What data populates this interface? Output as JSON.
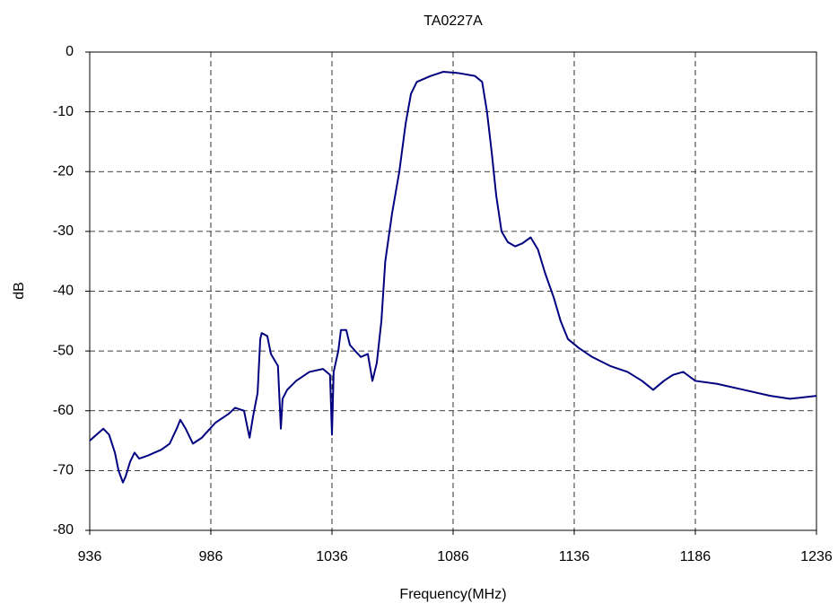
{
  "chart_data": {
    "type": "line",
    "title": "TA0227A",
    "x_label": "Frequency(MHz)",
    "y_label": "dB",
    "x": [
      936,
      941.6,
      944,
      946.4,
      947.9,
      949.7,
      950.8,
      952.7,
      954.5,
      956.4,
      960,
      965.6,
      969,
      971.9,
      973.4,
      975.6,
      978.6,
      982.3,
      987.9,
      993.4,
      996,
      999.7,
      1001.2,
      1002,
      1003.4,
      1005.3,
      1006.4,
      1007,
      1009.3,
      1010.8,
      1013.7,
      1014.9,
      1015.6,
      1017.5,
      1021.2,
      1026.7,
      1032.3,
      1035.2,
      1036,
      1036.7,
      1038.6,
      1039.7,
      1041.9,
      1043.4,
      1045.6,
      1047.9,
      1050.8,
      1052.7,
      1054.5,
      1056.4,
      1058,
      1060.8,
      1063.8,
      1066.4,
      1068.6,
      1071,
      1076.7,
      1082,
      1087.9,
      1095,
      1098,
      1100,
      1102,
      1103.8,
      1106,
      1108.6,
      1111.6,
      1114.6,
      1118,
      1121,
      1124,
      1127.5,
      1130.4,
      1133.4,
      1137.9,
      1143.4,
      1150.8,
      1158,
      1164,
      1168.6,
      1173,
      1176.7,
      1181,
      1186,
      1195,
      1206,
      1217,
      1225,
      1236
    ],
    "series": [
      {
        "name": "TA0227A",
        "color": "#000080",
        "values": [
          -65,
          -63,
          -64,
          -67,
          -70,
          -72,
          -71,
          -68.5,
          -67,
          -68,
          -67.5,
          -66.5,
          -65.5,
          -63,
          -61.5,
          -63,
          -65.5,
          -64.5,
          -62,
          -60.5,
          -59.5,
          -60,
          -63,
          -64.5,
          -61,
          -57,
          -48,
          -47,
          -47.5,
          -50.5,
          -52.5,
          -63,
          -58,
          -56.5,
          -55,
          -53.5,
          -53,
          -54,
          -64,
          -53.5,
          -50,
          -46.5,
          -46.5,
          -49,
          -50,
          -51,
          -50.5,
          -55,
          -52,
          -45,
          -35,
          -27,
          -20,
          -12,
          -7,
          -5,
          -4,
          -3.3,
          -3.5,
          -4,
          -5,
          -10,
          -17,
          -24,
          -30,
          -31.8,
          -32.5,
          -32,
          -31,
          -33,
          -37,
          -41,
          -45,
          -48,
          -49.5,
          -51,
          -52.5,
          -53.5,
          -55,
          -56.5,
          -55,
          -54,
          -53.5,
          -55,
          -55.5,
          -56.5,
          -57.5,
          -58,
          -57.5
        ]
      }
    ],
    "xlim": [
      936,
      1236
    ],
    "xticks": [
      936,
      986,
      1036,
      1086,
      1136,
      1186,
      1236
    ],
    "ylim": [
      -80,
      0
    ],
    "yticks": [
      -80,
      -70,
      -60,
      -50,
      -40,
      -30,
      -20,
      -10,
      0
    ],
    "grid": true
  }
}
